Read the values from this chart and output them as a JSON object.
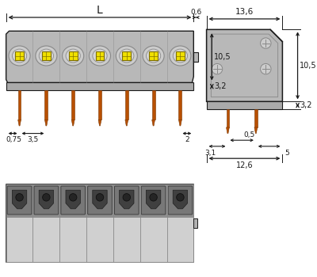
{
  "bg_color": "#ffffff",
  "gray_body": "#b8b8b8",
  "gray_dark": "#888888",
  "gray_light": "#cccccc",
  "gray_mid": "#aaaaaa",
  "yellow": "#f0e000",
  "orange": "#b85000",
  "orange_dark": "#7a3500",
  "line_col": "#1a1a1a",
  "dim_col": "#1a1a1a",
  "n_poles": 7,
  "dims": {
    "L": "L",
    "d06": "0,6",
    "d136": "13,6",
    "d105": "10,5",
    "d32": "3,2",
    "d075": "0,75",
    "d35": "3,5",
    "d2": "2",
    "d31": "3,1",
    "d05": "0,5",
    "d5": "5",
    "d126": "12,6"
  }
}
